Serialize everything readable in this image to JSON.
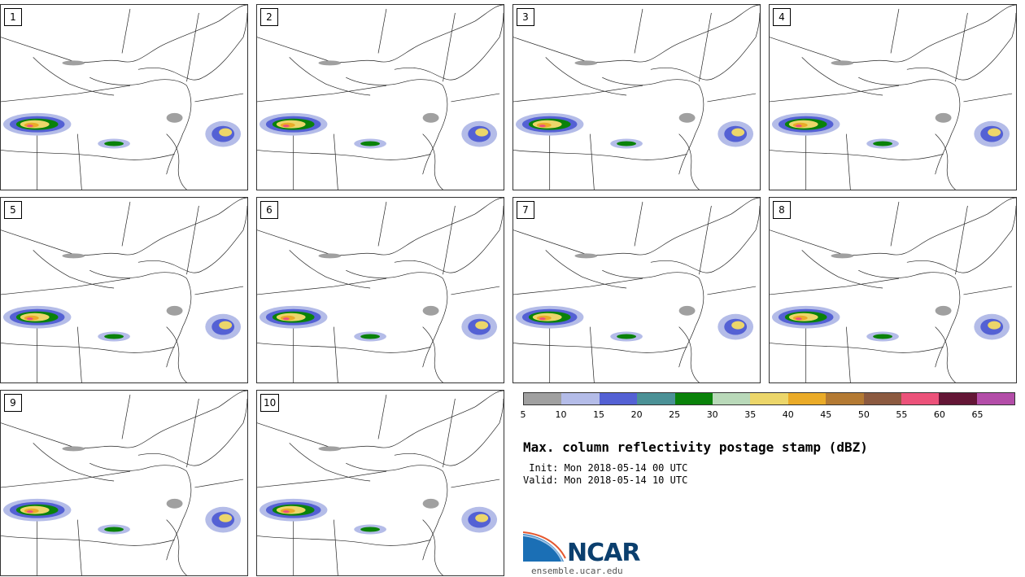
{
  "panels": [
    {
      "label": "1"
    },
    {
      "label": "2"
    },
    {
      "label": "3"
    },
    {
      "label": "4"
    },
    {
      "label": "5"
    },
    {
      "label": "6"
    },
    {
      "label": "7"
    },
    {
      "label": "8"
    },
    {
      "label": "9"
    },
    {
      "label": "10"
    }
  ],
  "colorbar": {
    "colors": [
      "#a0a0a0",
      "#b4bce8",
      "#5461d4",
      "#4b9196",
      "#0a820a",
      "#b9d9b9",
      "#ecd66a",
      "#eaab28",
      "#b47a33",
      "#8c5a40",
      "#ec527a",
      "#641636",
      "#b34da8"
    ],
    "ticks": [
      "5",
      "10",
      "15",
      "20",
      "25",
      "30",
      "35",
      "40",
      "45",
      "50",
      "55",
      "60",
      "65"
    ]
  },
  "title": "Max. column reflectivity postage stamp (dBZ)",
  "init_line": " Init: Mon 2018-05-14 00 UTC",
  "valid_line": "Valid: Mon 2018-05-14 10 UTC",
  "logo": {
    "name": "NCAR",
    "url_text": "ensemble.ucar.edu"
  }
}
